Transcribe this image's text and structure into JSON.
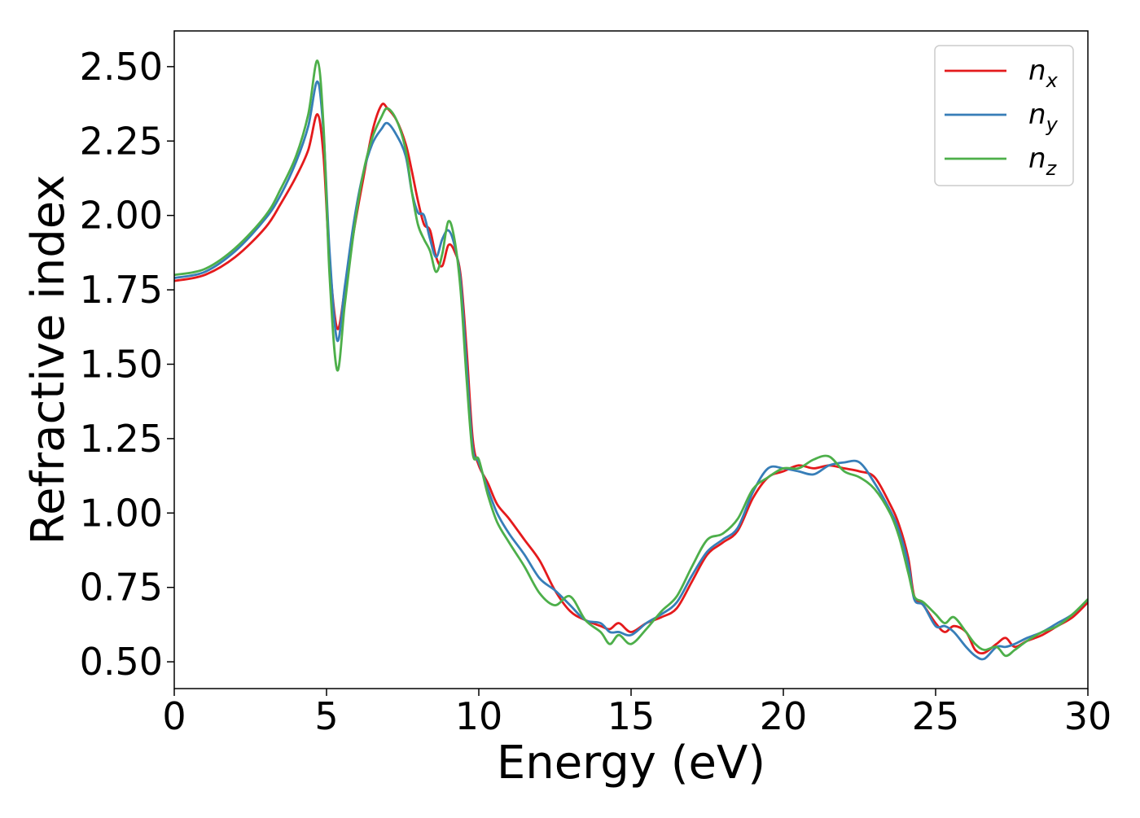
{
  "chart_data": {
    "type": "line",
    "title": "",
    "xlabel": "Energy (eV)",
    "ylabel": "Refractive index",
    "xlim": [
      0,
      30
    ],
    "ylim": [
      0.41,
      2.62
    ],
    "xticks": [
      0,
      5,
      10,
      15,
      20,
      25,
      30
    ],
    "xtick_labels": [
      "0",
      "5",
      "10",
      "15",
      "20",
      "25",
      "30"
    ],
    "yticks": [
      0.5,
      0.75,
      1.0,
      1.25,
      1.5,
      1.75,
      2.0,
      2.25,
      2.5
    ],
    "ytick_labels": [
      "0.50",
      "0.75",
      "1.00",
      "1.25",
      "1.50",
      "1.75",
      "2.00",
      "2.25",
      "2.50"
    ],
    "grid": false,
    "legend_position": "top-right",
    "series": [
      {
        "name": "n_x",
        "label_base": "n",
        "label_sub": "x",
        "color": "#e41a1c",
        "x": [
          0,
          1,
          2,
          3,
          3.5,
          4,
          4.4,
          4.7,
          4.9,
          5.1,
          5.35,
          5.6,
          5.9,
          6.2,
          6.5,
          6.8,
          7.0,
          7.3,
          7.6,
          7.8,
          8.0,
          8.2,
          8.4,
          8.6,
          8.8,
          9.0,
          9.2,
          9.4,
          9.6,
          9.8,
          10.0,
          10.3,
          10.6,
          11.0,
          11.5,
          12.0,
          12.5,
          13.0,
          13.5,
          14.0,
          14.3,
          14.6,
          15.0,
          15.5,
          16.0,
          16.5,
          17.0,
          17.5,
          18.0,
          18.5,
          19.0,
          19.5,
          20.0,
          20.5,
          21.0,
          21.5,
          22.0,
          22.5,
          23.0,
          23.5,
          23.8,
          24.1,
          24.3,
          24.6,
          25.0,
          25.3,
          25.6,
          26.0,
          26.3,
          26.6,
          27.0,
          27.3,
          27.6,
          28.0,
          28.5,
          29.0,
          29.5,
          30.0
        ],
        "y": [
          1.78,
          1.8,
          1.86,
          1.96,
          2.04,
          2.13,
          2.22,
          2.34,
          2.2,
          1.85,
          1.62,
          1.75,
          1.95,
          2.12,
          2.28,
          2.37,
          2.36,
          2.32,
          2.24,
          2.15,
          2.05,
          1.97,
          1.95,
          1.86,
          1.83,
          1.9,
          1.88,
          1.8,
          1.55,
          1.25,
          1.16,
          1.1,
          1.03,
          0.98,
          0.91,
          0.84,
          0.74,
          0.67,
          0.64,
          0.62,
          0.61,
          0.63,
          0.6,
          0.63,
          0.65,
          0.68,
          0.77,
          0.86,
          0.9,
          0.94,
          1.05,
          1.12,
          1.14,
          1.16,
          1.15,
          1.16,
          1.15,
          1.14,
          1.12,
          1.03,
          0.96,
          0.85,
          0.72,
          0.69,
          0.63,
          0.6,
          0.62,
          0.6,
          0.54,
          0.53,
          0.56,
          0.58,
          0.55,
          0.57,
          0.59,
          0.62,
          0.65,
          0.7
        ]
      },
      {
        "name": "n_y",
        "label_base": "n",
        "label_sub": "y",
        "color": "#377eb8",
        "x": [
          0,
          1,
          2,
          3,
          3.5,
          4,
          4.4,
          4.7,
          4.9,
          5.1,
          5.35,
          5.6,
          5.9,
          6.2,
          6.5,
          6.8,
          7.0,
          7.3,
          7.6,
          7.8,
          8.0,
          8.2,
          8.4,
          8.6,
          8.8,
          9.0,
          9.2,
          9.4,
          9.6,
          9.8,
          10.0,
          10.3,
          10.6,
          11.0,
          11.5,
          12.0,
          12.5,
          13.0,
          13.5,
          14.0,
          14.3,
          14.6,
          15.0,
          15.5,
          16.0,
          16.5,
          17.0,
          17.5,
          18.0,
          18.5,
          19.0,
          19.5,
          20.0,
          20.5,
          21.0,
          21.5,
          22.0,
          22.5,
          23.0,
          23.5,
          23.8,
          24.1,
          24.3,
          24.6,
          25.0,
          25.3,
          25.6,
          26.0,
          26.3,
          26.6,
          27.0,
          27.3,
          27.6,
          28.0,
          28.5,
          29.0,
          29.5,
          30.0
        ],
        "y": [
          1.79,
          1.81,
          1.88,
          1.99,
          2.07,
          2.18,
          2.3,
          2.45,
          2.28,
          1.88,
          1.58,
          1.76,
          1.98,
          2.14,
          2.24,
          2.29,
          2.31,
          2.27,
          2.2,
          2.08,
          2.01,
          2.0,
          1.92,
          1.86,
          1.92,
          1.95,
          1.9,
          1.78,
          1.5,
          1.22,
          1.17,
          1.08,
          1.0,
          0.93,
          0.86,
          0.78,
          0.74,
          0.69,
          0.64,
          0.63,
          0.6,
          0.6,
          0.59,
          0.63,
          0.66,
          0.7,
          0.79,
          0.87,
          0.91,
          0.95,
          1.07,
          1.15,
          1.15,
          1.14,
          1.13,
          1.16,
          1.17,
          1.17,
          1.1,
          1.01,
          0.94,
          0.83,
          0.71,
          0.69,
          0.62,
          0.62,
          0.6,
          0.55,
          0.52,
          0.51,
          0.55,
          0.55,
          0.56,
          0.58,
          0.6,
          0.63,
          0.66,
          0.71
        ]
      },
      {
        "name": "n_z",
        "label_base": "n",
        "label_sub": "z",
        "color": "#4daf4a",
        "x": [
          0,
          1,
          2,
          3,
          3.5,
          4,
          4.4,
          4.7,
          4.9,
          5.1,
          5.35,
          5.6,
          5.9,
          6.2,
          6.5,
          6.8,
          7.0,
          7.3,
          7.6,
          7.8,
          8.0,
          8.2,
          8.4,
          8.6,
          8.8,
          9.0,
          9.2,
          9.4,
          9.6,
          9.8,
          10.0,
          10.3,
          10.6,
          11.0,
          11.5,
          12.0,
          12.5,
          13.0,
          13.5,
          14.0,
          14.3,
          14.6,
          15.0,
          15.5,
          16.0,
          16.5,
          17.0,
          17.5,
          18.0,
          18.5,
          19.0,
          19.5,
          20.0,
          20.5,
          21.0,
          21.5,
          22.0,
          22.5,
          23.0,
          23.5,
          23.8,
          24.1,
          24.3,
          24.6,
          25.0,
          25.3,
          25.6,
          26.0,
          26.3,
          26.6,
          27.0,
          27.3,
          27.6,
          28.0,
          28.5,
          29.0,
          29.5,
          30.0
        ],
        "y": [
          1.8,
          1.82,
          1.89,
          2.0,
          2.09,
          2.2,
          2.34,
          2.52,
          2.3,
          1.8,
          1.48,
          1.7,
          1.95,
          2.14,
          2.26,
          2.33,
          2.36,
          2.32,
          2.22,
          2.08,
          1.97,
          1.92,
          1.88,
          1.81,
          1.87,
          1.98,
          1.92,
          1.75,
          1.45,
          1.2,
          1.18,
          1.06,
          0.97,
          0.9,
          0.82,
          0.73,
          0.69,
          0.72,
          0.64,
          0.6,
          0.56,
          0.59,
          0.56,
          0.61,
          0.67,
          0.72,
          0.82,
          0.91,
          0.93,
          0.98,
          1.08,
          1.12,
          1.15,
          1.15,
          1.18,
          1.19,
          1.14,
          1.12,
          1.08,
          1.0,
          0.92,
          0.8,
          0.72,
          0.7,
          0.66,
          0.63,
          0.65,
          0.6,
          0.56,
          0.54,
          0.55,
          0.52,
          0.54,
          0.57,
          0.6,
          0.62,
          0.66,
          0.71
        ]
      }
    ]
  }
}
